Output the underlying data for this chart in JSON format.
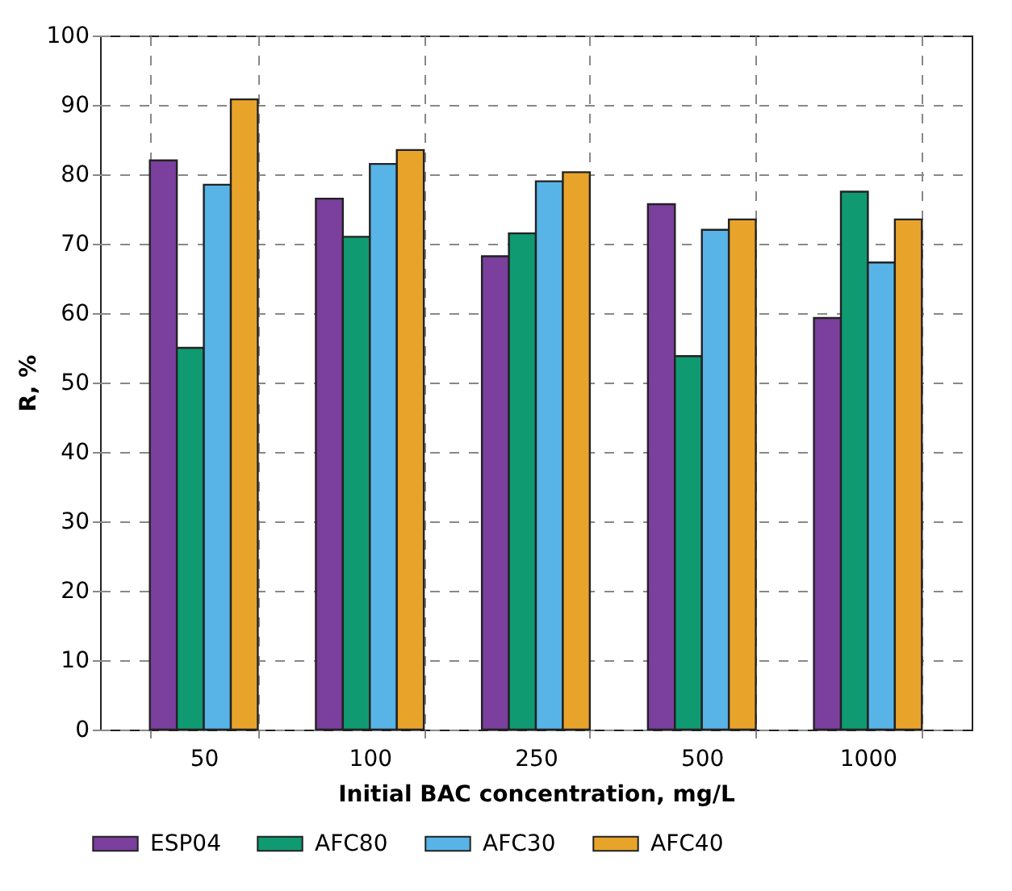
{
  "chart_data": {
    "type": "bar",
    "xlabel": "Initial BAC concentration, mg/L",
    "ylabel": "R, %",
    "categories": [
      "50",
      "100",
      "250",
      "500",
      "1000"
    ],
    "series": [
      {
        "name": "ESP04",
        "color": "#7b3f9e",
        "values": [
          82,
          76.5,
          68.2,
          75.7,
          59.3
        ]
      },
      {
        "name": "AFC80",
        "color": "#0f9a72",
        "values": [
          55,
          71,
          71.5,
          53.8,
          77.5
        ]
      },
      {
        "name": "AFC30",
        "color": "#58b4e6",
        "values": [
          78.5,
          81.5,
          79,
          72,
          67.3
        ]
      },
      {
        "name": "AFC40",
        "color": "#e8a42a",
        "values": [
          90.8,
          83.5,
          80.3,
          73.5,
          73.5
        ]
      }
    ],
    "ylim": [
      0,
      100
    ],
    "yticks": [
      0,
      10,
      20,
      30,
      40,
      50,
      60,
      70,
      80,
      90,
      100
    ],
    "grid": true,
    "legend": "bottom"
  }
}
